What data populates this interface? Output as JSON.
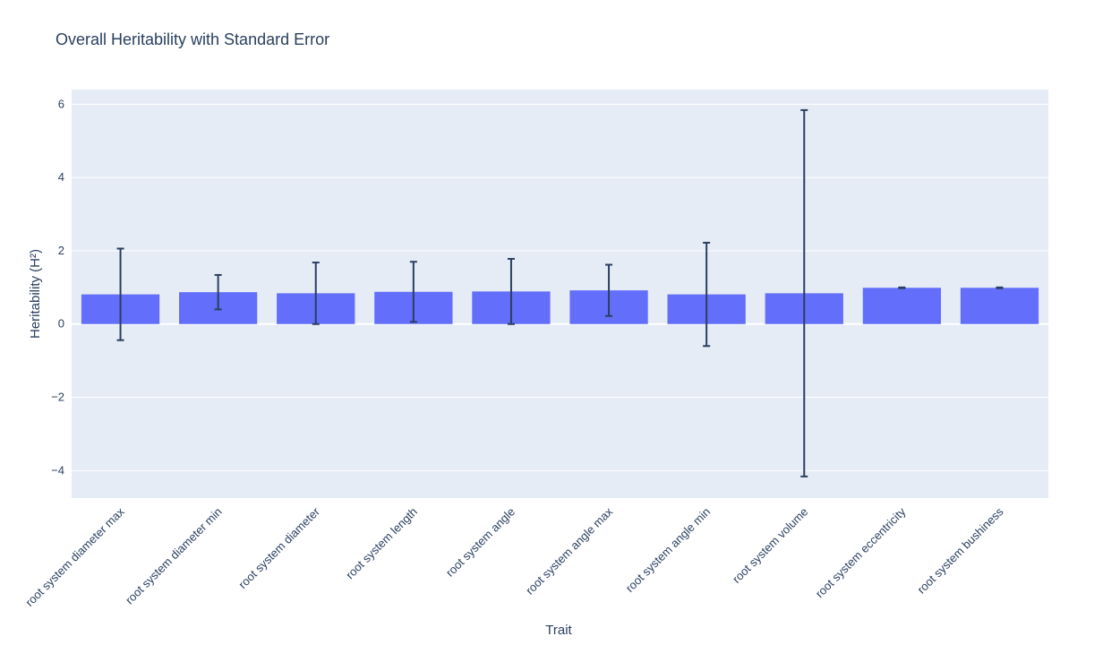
{
  "chart_data": {
    "type": "bar",
    "title": "Overall Heritability with Standard Error",
    "xlabel": "Trait",
    "ylabel": "Heritability (H²)",
    "categories": [
      "root system diameter max",
      "root system diameter min",
      "root system diameter",
      "root system length",
      "root system angle",
      "root system angle max",
      "root system angle min",
      "root system volume",
      "root system eccentricity",
      "root system bushiness"
    ],
    "values": [
      0.81,
      0.87,
      0.84,
      0.88,
      0.89,
      0.92,
      0.81,
      0.84,
      0.99,
      0.99
    ],
    "error": [
      1.25,
      0.47,
      0.84,
      0.82,
      0.89,
      0.7,
      1.41,
      5.0,
      0.01,
      0.01
    ],
    "ylim": [
      -4.75,
      6.4
    ],
    "yticks": [
      6,
      4,
      2,
      0,
      -2,
      -4
    ],
    "ytick_labels": [
      "6",
      "4",
      "2",
      "0",
      "−2",
      "−4"
    ],
    "grid": true,
    "colors": {
      "bar": "#636efa",
      "plot_bg": "#e5ecf6",
      "grid": "#ffffff",
      "error_bar": "#2a3f5f",
      "text": "#2a3f5f"
    }
  }
}
